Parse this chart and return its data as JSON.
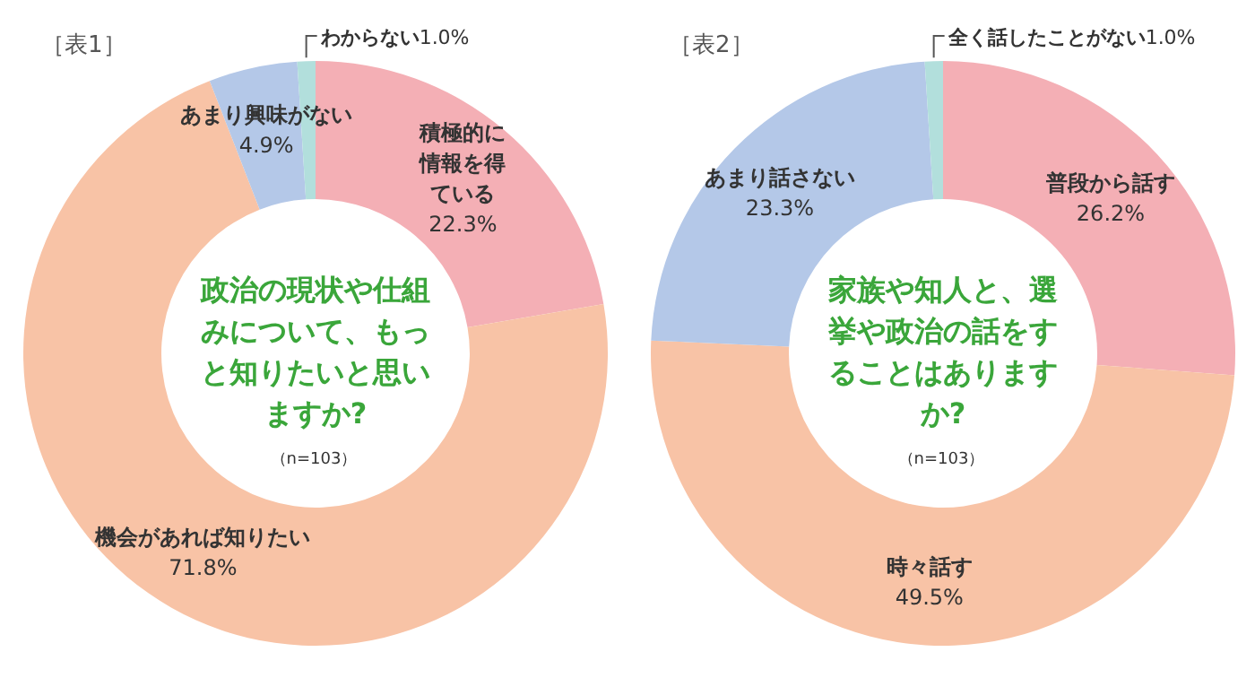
{
  "chart_data": [
    {
      "type": "donut",
      "title": "［表1］",
      "subtitle": "政治の現状や仕組みについて、もっと知りたいと思いますか?",
      "annotations": [
        "（n=103）"
      ],
      "categories": [
        "積極的に情報を得ている",
        "機会があれば知りたい",
        "あまり興味がない",
        "わからない"
      ],
      "values": [
        22.3,
        71.8,
        4.9,
        1.0
      ],
      "value_labels": [
        "22.3%",
        "71.8%",
        "4.9%",
        "1.0%"
      ],
      "colors": [
        "#f4afb5",
        "#f8c3a6",
        "#b4c8e8",
        "#b2dfdc"
      ]
    },
    {
      "type": "donut",
      "title": "［表2］",
      "subtitle": "家族や知人と、選挙や政治の話をすることはありますか?",
      "annotations": [
        "（n=103）"
      ],
      "categories": [
        "普段から話す",
        "時々話す",
        "あまり話さない",
        "全く話したことがない"
      ],
      "values": [
        26.2,
        49.5,
        23.3,
        1.0
      ],
      "value_labels": [
        "26.2%",
        "49.5%",
        "23.3%",
        "1.0%"
      ],
      "colors": [
        "#f4afb5",
        "#f8c3a6",
        "#b4c8e8",
        "#b2dfdc"
      ]
    }
  ]
}
